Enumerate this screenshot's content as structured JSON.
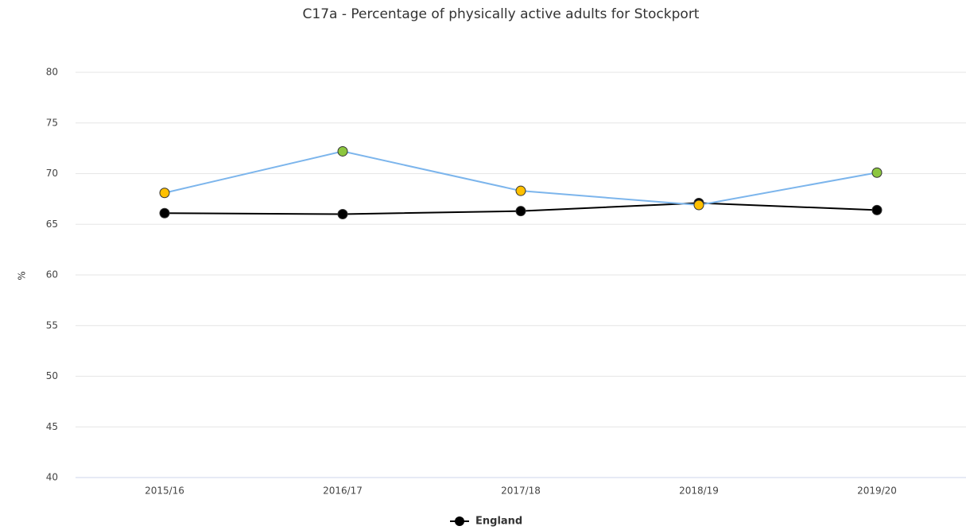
{
  "chart_data": {
    "type": "line",
    "title": "C17a - Percentage of physically active adults for Stockport",
    "y_label": "%",
    "categories": [
      "2015/16",
      "2016/17",
      "2017/18",
      "2018/19",
      "2019/20"
    ],
    "series": [
      {
        "color": "#7cb5ec",
        "marker_colors": [
          "#ffc000",
          "#8cc63f",
          "#ffc000",
          "#ffc000",
          "#8cc63f"
        ],
        "values": [
          68.1,
          72.2,
          68.3,
          66.9,
          70.1
        ]
      },
      {
        "name": "England",
        "color": "#000000",
        "values": [
          66.1,
          66.0,
          66.3,
          67.1,
          66.4
        ]
      }
    ],
    "ylim": [
      40,
      80
    ],
    "yticks": [
      40,
      45,
      50,
      55,
      60,
      65,
      70,
      75,
      80
    ],
    "grid": true
  }
}
